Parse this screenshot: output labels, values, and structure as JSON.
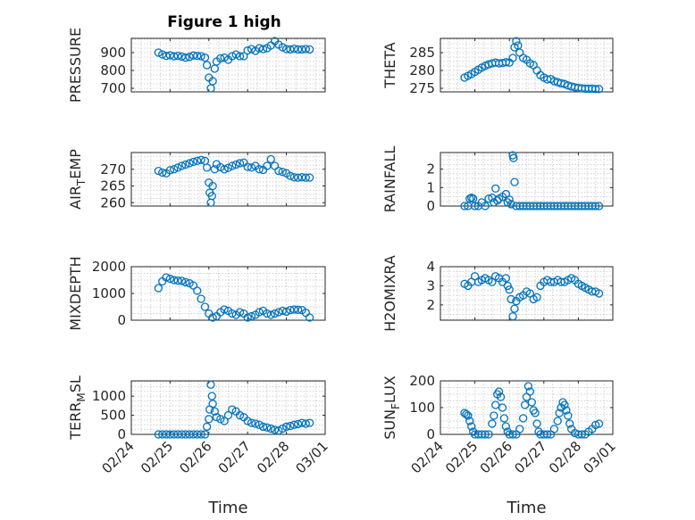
{
  "figure": {
    "title": "Figure 1 high"
  },
  "chart_data": [
    {
      "type": "scatter",
      "name": "pressure",
      "ylabel": "PRESSURE",
      "xlim": [
        0,
        5
      ],
      "ylim": [
        680,
        980
      ],
      "yticks": [
        700,
        800,
        900
      ],
      "show_x_ticklabels": false,
      "xlabel": "",
      "x": [
        0.7,
        0.8,
        0.9,
        1.0,
        1.1,
        1.2,
        1.3,
        1.4,
        1.5,
        1.6,
        1.7,
        1.8,
        1.9,
        1.95,
        2.0,
        2.05,
        2.1,
        2.15,
        2.2,
        2.3,
        2.4,
        2.5,
        2.6,
        2.7,
        2.8,
        2.9,
        3.0,
        3.1,
        3.2,
        3.3,
        3.4,
        3.5,
        3.6,
        3.7,
        3.8,
        3.9,
        4.0,
        4.1,
        4.2,
        4.3,
        4.4,
        4.5,
        4.6
      ],
      "y": [
        900,
        890,
        882,
        885,
        880,
        882,
        878,
        872,
        876,
        884,
        882,
        880,
        872,
        830,
        760,
        700,
        740,
        810,
        850,
        868,
        872,
        860,
        880,
        890,
        880,
        880,
        912,
        920,
        910,
        925,
        920,
        925,
        940,
        965,
        945,
        930,
        920,
        918,
        922,
        918,
        918,
        920,
        918
      ]
    },
    {
      "type": "scatter",
      "name": "theta",
      "ylabel": "THETA",
      "xlim": [
        0,
        5
      ],
      "ylim": [
        274,
        289
      ],
      "yticks": [
        275,
        280,
        285
      ],
      "show_x_ticklabels": false,
      "xlabel": "",
      "x": [
        0.7,
        0.8,
        0.9,
        1.0,
        1.1,
        1.2,
        1.3,
        1.4,
        1.5,
        1.6,
        1.7,
        1.8,
        1.9,
        2.0,
        2.1,
        2.15,
        2.2,
        2.25,
        2.3,
        2.4,
        2.5,
        2.6,
        2.7,
        2.8,
        2.9,
        3.0,
        3.1,
        3.2,
        3.3,
        3.4,
        3.5,
        3.6,
        3.7,
        3.8,
        3.9,
        4.0,
        4.1,
        4.2,
        4.3,
        4.4,
        4.5,
        4.6
      ],
      "y": [
        278,
        278.5,
        279,
        279.6,
        280.2,
        280.8,
        281.3,
        281.7,
        282,
        282.2,
        282,
        282.1,
        282.3,
        282.2,
        283.5,
        286.5,
        288.2,
        287,
        285,
        283.5,
        283,
        282,
        281.5,
        280,
        278.7,
        278,
        277.5,
        277.6,
        277,
        276.7,
        276.4,
        276.2,
        275.8,
        275.5,
        275.3,
        275.1,
        275,
        274.9,
        274.9,
        274.9,
        274.8,
        274.8
      ]
    },
    {
      "type": "scatter",
      "name": "air_temp",
      "ylabel": "AIR_TEMP",
      "xlim": [
        0,
        5
      ],
      "ylim": [
        259,
        275
      ],
      "yticks": [
        260,
        265,
        270
      ],
      "show_x_ticklabels": false,
      "xlabel": "",
      "x": [
        0.7,
        0.8,
        0.9,
        1.0,
        1.1,
        1.2,
        1.3,
        1.4,
        1.5,
        1.6,
        1.7,
        1.8,
        1.9,
        1.95,
        2.0,
        2.02,
        2.05,
        2.08,
        2.1,
        2.15,
        2.2,
        2.3,
        2.4,
        2.5,
        2.6,
        2.7,
        2.8,
        2.9,
        3.0,
        3.1,
        3.2,
        3.3,
        3.4,
        3.5,
        3.6,
        3.7,
        3.8,
        3.9,
        4.0,
        4.1,
        4.2,
        4.3,
        4.4,
        4.5,
        4.6
      ],
      "y": [
        269.5,
        269,
        268.8,
        269.7,
        270,
        270.5,
        271,
        271.4,
        271.8,
        272.2,
        272.5,
        272.8,
        272.5,
        270.5,
        266,
        263,
        260,
        262,
        265,
        270,
        271.5,
        270.6,
        270,
        270.4,
        271,
        271.4,
        271.8,
        272,
        270.7,
        270.5,
        271,
        270,
        269.8,
        271,
        273,
        271,
        269.5,
        269.2,
        268.8,
        268,
        267.6,
        267.5,
        267.6,
        267.5,
        267.5
      ]
    },
    {
      "type": "scatter",
      "name": "rainfall",
      "ylabel": "RAINFALL",
      "xlim": [
        0,
        5
      ],
      "ylim": [
        0,
        2.9
      ],
      "yticks": [
        0,
        1,
        2
      ],
      "show_x_ticklabels": false,
      "xlabel": "",
      "x": [
        0.7,
        0.8,
        0.85,
        0.9,
        0.95,
        1.0,
        1.1,
        1.2,
        1.3,
        1.4,
        1.5,
        1.55,
        1.6,
        1.65,
        1.7,
        1.8,
        1.9,
        1.95,
        2.0,
        2.05,
        2.1,
        2.12,
        2.15,
        2.2,
        2.3,
        2.4,
        2.5,
        2.6,
        2.7,
        2.8,
        2.9,
        3.0,
        3.1,
        3.2,
        3.3,
        3.4,
        3.5,
        3.6,
        3.7,
        3.8,
        3.9,
        4.0,
        4.1,
        4.2,
        4.3,
        4.4,
        4.5,
        4.6
      ],
      "y": [
        0,
        0,
        0.4,
        0.45,
        0.4,
        0,
        0,
        0.2,
        0,
        0.4,
        0.45,
        0.2,
        0.95,
        0.3,
        0.4,
        0.5,
        0.65,
        0.2,
        0.35,
        0.1,
        2.75,
        2.6,
        1.3,
        0,
        0,
        0,
        0,
        0,
        0,
        0,
        0,
        0,
        0,
        0,
        0,
        0,
        0,
        0,
        0,
        0,
        0,
        0,
        0,
        0,
        0,
        0,
        0,
        0
      ]
    },
    {
      "type": "scatter",
      "name": "mixdepth",
      "ylabel": "MIXDEPTH",
      "xlim": [
        0,
        5
      ],
      "ylim": [
        0,
        2000
      ],
      "yticks": [
        0,
        1000,
        2000
      ],
      "show_x_ticklabels": false,
      "xlabel": "",
      "x": [
        0.7,
        0.8,
        0.9,
        1.0,
        1.1,
        1.2,
        1.3,
        1.4,
        1.5,
        1.6,
        1.7,
        1.8,
        1.9,
        2.0,
        2.1,
        2.2,
        2.3,
        2.4,
        2.5,
        2.6,
        2.7,
        2.8,
        2.9,
        3.0,
        3.1,
        3.2,
        3.3,
        3.4,
        3.5,
        3.6,
        3.7,
        3.8,
        3.9,
        4.0,
        4.1,
        4.2,
        4.3,
        4.4,
        4.5,
        4.6
      ],
      "y": [
        1200,
        1450,
        1600,
        1550,
        1500,
        1480,
        1470,
        1420,
        1380,
        1300,
        1100,
        800,
        500,
        250,
        100,
        150,
        300,
        400,
        350,
        250,
        200,
        300,
        250,
        100,
        150,
        200,
        300,
        350,
        250,
        200,
        250,
        300,
        350,
        320,
        380,
        400,
        390,
        380,
        280,
        100
      ]
    },
    {
      "type": "scatter",
      "name": "h2omixra",
      "ylabel": "H2OMIXRA",
      "xlim": [
        0,
        5
      ],
      "ylim": [
        1.2,
        4
      ],
      "yticks": [
        2,
        3,
        4
      ],
      "show_x_ticklabels": false,
      "xlabel": "",
      "x": [
        0.7,
        0.8,
        0.9,
        1.0,
        1.1,
        1.2,
        1.3,
        1.4,
        1.5,
        1.6,
        1.7,
        1.8,
        1.9,
        1.95,
        2.0,
        2.05,
        2.1,
        2.15,
        2.2,
        2.3,
        2.4,
        2.5,
        2.6,
        2.7,
        2.8,
        2.9,
        3.0,
        3.1,
        3.2,
        3.3,
        3.4,
        3.5,
        3.6,
        3.7,
        3.8,
        3.9,
        4.0,
        4.1,
        4.2,
        4.3,
        4.4,
        4.5,
        4.6
      ],
      "y": [
        3.1,
        3.0,
        3.2,
        3.5,
        3.2,
        3.3,
        3.4,
        3.3,
        3.2,
        3.5,
        3.4,
        3.2,
        3.4,
        3.0,
        2.8,
        2.3,
        1.4,
        1.8,
        2.2,
        2.4,
        2.5,
        2.7,
        2.6,
        2.3,
        2.4,
        3.0,
        3.2,
        3.3,
        3.2,
        3.2,
        3.3,
        3.2,
        3.2,
        3.3,
        3.4,
        3.3,
        3.1,
        3.0,
        2.9,
        2.8,
        2.7,
        2.7,
        2.6
      ]
    },
    {
      "type": "scatter",
      "name": "terr_msl",
      "ylabel": "TERR_MSL",
      "xlim": [
        0,
        5
      ],
      "ylim": [
        0,
        1400
      ],
      "yticks": [
        0,
        500,
        1000
      ],
      "show_x_ticklabels": true,
      "xlabel": "Time",
      "xtick_positions": [
        0,
        1,
        2,
        3,
        4,
        5
      ],
      "xtick_labels": [
        "02/24",
        "02/25",
        "02/26",
        "02/27",
        "02/28",
        "03/01"
      ],
      "x": [
        0.7,
        0.8,
        0.9,
        1.0,
        1.1,
        1.2,
        1.3,
        1.4,
        1.5,
        1.6,
        1.7,
        1.8,
        1.9,
        1.95,
        2.0,
        2.02,
        2.05,
        2.08,
        2.1,
        2.15,
        2.2,
        2.3,
        2.4,
        2.5,
        2.6,
        2.7,
        2.8,
        2.9,
        3.0,
        3.1,
        3.2,
        3.3,
        3.4,
        3.5,
        3.6,
        3.7,
        3.8,
        3.9,
        4.0,
        4.1,
        4.2,
        4.3,
        4.4,
        4.5,
        4.6
      ],
      "y": [
        0,
        0,
        0,
        0,
        0,
        0,
        0,
        0,
        0,
        0,
        0,
        0,
        0,
        200,
        400,
        650,
        1300,
        1000,
        800,
        600,
        450,
        400,
        350,
        500,
        650,
        600,
        500,
        450,
        350,
        300,
        280,
        250,
        200,
        180,
        150,
        120,
        100,
        150,
        200,
        220,
        250,
        270,
        300,
        280,
        300
      ]
    },
    {
      "type": "scatter",
      "name": "sun_flux",
      "ylabel": "SUN_FLUX",
      "xlim": [
        0,
        5
      ],
      "ylim": [
        0,
        200
      ],
      "yticks": [
        0,
        100,
        200
      ],
      "show_x_ticklabels": true,
      "xlabel": "Time",
      "xtick_positions": [
        0,
        1,
        2,
        3,
        4,
        5
      ],
      "xtick_labels": [
        "02/24",
        "02/25",
        "02/26",
        "02/27",
        "02/28",
        "03/01"
      ],
      "x": [
        0.7,
        0.75,
        0.8,
        0.85,
        0.9,
        0.95,
        1.0,
        1.1,
        1.2,
        1.3,
        1.4,
        1.5,
        1.55,
        1.6,
        1.65,
        1.7,
        1.75,
        1.8,
        1.85,
        1.9,
        1.95,
        2.0,
        2.1,
        2.2,
        2.3,
        2.4,
        2.45,
        2.5,
        2.55,
        2.6,
        2.65,
        2.7,
        2.75,
        2.8,
        2.85,
        2.9,
        3.0,
        3.1,
        3.2,
        3.3,
        3.4,
        3.45,
        3.5,
        3.55,
        3.6,
        3.65,
        3.7,
        3.75,
        3.8,
        3.9,
        4.0,
        4.1,
        4.2,
        4.3,
        4.4,
        4.5,
        4.6
      ],
      "y": [
        80,
        75,
        70,
        50,
        30,
        10,
        0,
        0,
        0,
        0,
        0,
        40,
        70,
        110,
        150,
        160,
        140,
        100,
        60,
        30,
        10,
        0,
        0,
        0,
        20,
        60,
        110,
        140,
        180,
        160,
        120,
        90,
        80,
        40,
        10,
        0,
        0,
        0,
        0,
        20,
        50,
        80,
        100,
        120,
        110,
        90,
        70,
        40,
        20,
        5,
        0,
        0,
        0,
        10,
        20,
        35,
        40
      ]
    }
  ]
}
